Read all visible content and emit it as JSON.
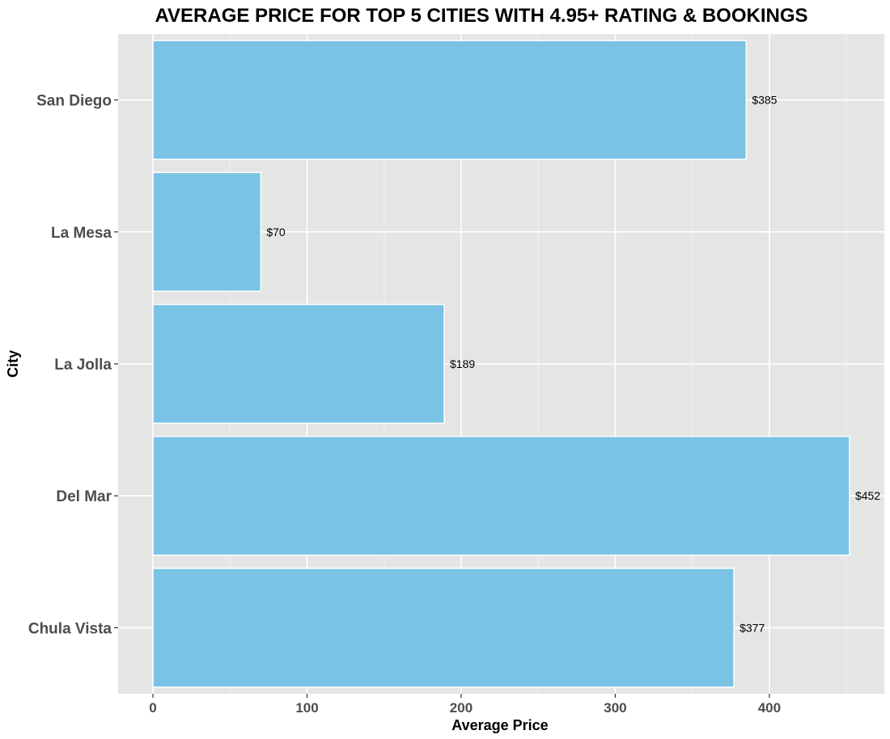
{
  "chart_data": {
    "type": "bar",
    "orientation": "horizontal",
    "title": "AVERAGE PRICE FOR TOP 5 CITIES WITH 4.95+ RATING & BOOKINGS",
    "xlabel": "Average Price",
    "ylabel": "City",
    "categories": [
      "San Diego",
      "La Mesa",
      "La Jolla",
      "Del Mar",
      "Chula Vista"
    ],
    "values": [
      385,
      70,
      189,
      452,
      377
    ],
    "data_labels": [
      "$385",
      "$70",
      "$189",
      "$452",
      "$377"
    ],
    "x_ticks": [
      0,
      100,
      200,
      300,
      400
    ],
    "x_tick_labels": [
      "0",
      "100",
      "200",
      "300",
      "400"
    ],
    "xlim": [
      -22.6,
      474.6
    ],
    "grid": true,
    "legend": "none",
    "colors": {
      "bar_fill": "#7ac3e5",
      "bar_outline": "#ffffff",
      "panel_background": "#e5e5e5",
      "grid_major": "#ffffff",
      "grid_minor": "#f2f2f2"
    }
  }
}
